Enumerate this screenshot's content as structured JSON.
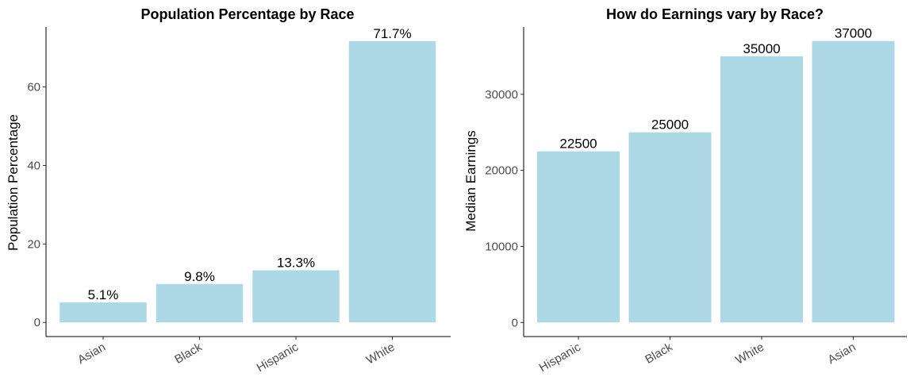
{
  "chart_data": [
    {
      "type": "bar",
      "title": "Population Percentage by Race",
      "xlabel": "",
      "ylabel": "Population Percentage",
      "categories": [
        "Asian",
        "Black",
        "Hispanic",
        "White"
      ],
      "values": [
        5.1,
        9.8,
        13.3,
        71.7
      ],
      "data_labels": [
        "5.1%",
        "9.8%",
        "13.3%",
        "71.7%"
      ],
      "yticks": [
        0,
        20,
        40,
        60
      ],
      "ylim": [
        -3.6,
        75.3
      ],
      "bar_color": "#ADD8E6",
      "grid": false,
      "legend": "none"
    },
    {
      "type": "bar",
      "title": "How do Earnings vary by Race?",
      "xlabel": "",
      "ylabel": "Median Earnings",
      "categories": [
        "Hispanic",
        "Black",
        "White",
        "Asian"
      ],
      "values": [
        22500,
        25000,
        35000,
        37000
      ],
      "data_labels": [
        "22500",
        "25000",
        "35000",
        "37000"
      ],
      "yticks": [
        0,
        10000,
        20000,
        30000
      ],
      "ylim": [
        -1850,
        38850
      ],
      "bar_color": "#ADD8E6",
      "grid": false,
      "legend": "none"
    }
  ]
}
